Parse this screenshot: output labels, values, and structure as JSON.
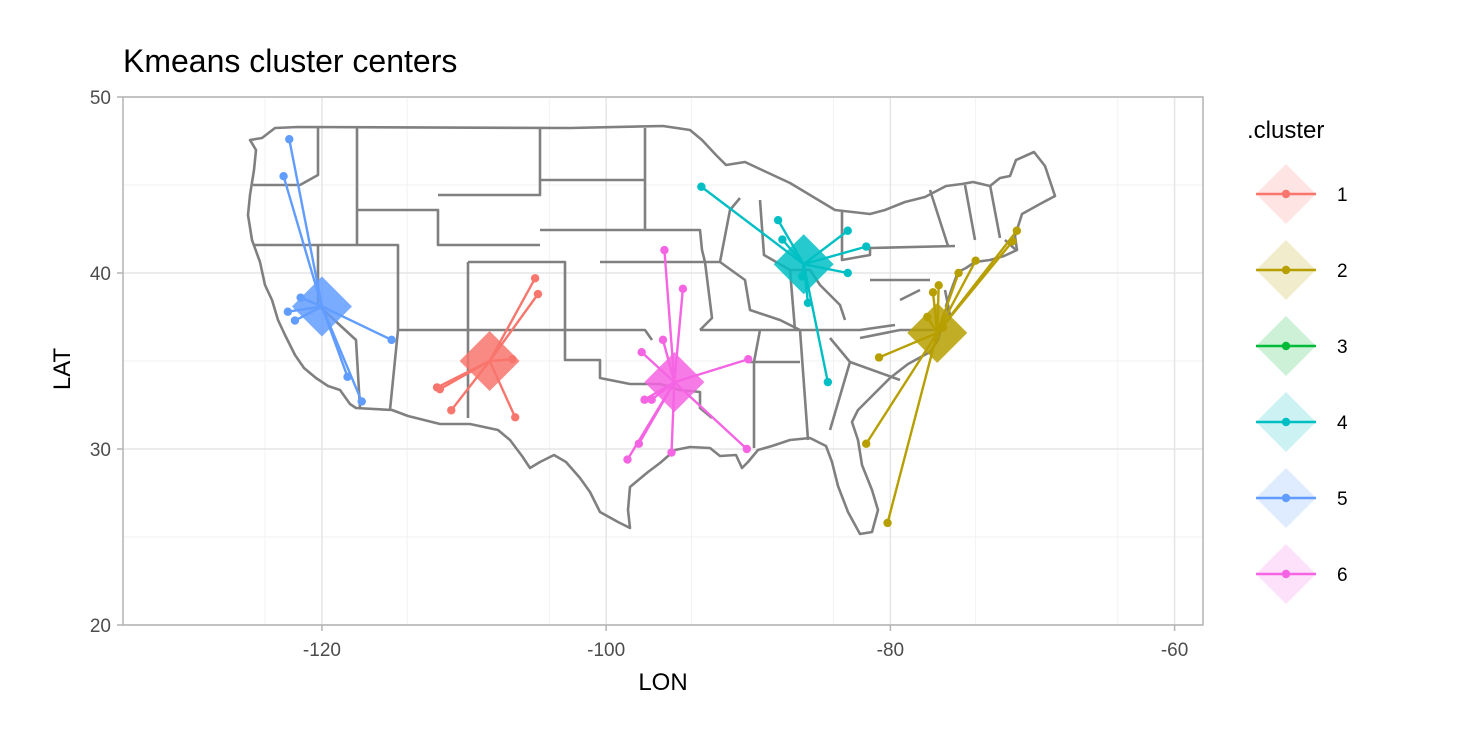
{
  "chart_data": {
    "type": "scatter",
    "title": "Kmeans cluster centers",
    "xlabel": "LON",
    "ylabel": "LAT",
    "xlim": [
      -134,
      -58
    ],
    "ylim": [
      20,
      50
    ],
    "x_ticks": [
      -120,
      -100,
      -80,
      -60
    ],
    "y_ticks": [
      20,
      30,
      40,
      50
    ],
    "x_tick_labels": [
      "-120",
      "-100",
      "-80",
      "-60"
    ],
    "y_tick_labels": [
      "20",
      "30",
      "40",
      "50"
    ],
    "grid": true,
    "legend": {
      "title": ".cluster",
      "position": "right"
    },
    "basemap": "US state boundaries",
    "series": [
      {
        "name": "1",
        "color": "#F8766D",
        "center": [
          -108.2,
          35.0
        ],
        "points": [
          [
            -105.0,
            39.7
          ],
          [
            -104.8,
            38.8
          ],
          [
            -106.6,
            35.1
          ],
          [
            -106.4,
            31.8
          ],
          [
            -110.9,
            32.2
          ],
          [
            -111.9,
            33.5
          ],
          [
            -111.7,
            33.4
          ]
        ]
      },
      {
        "name": "2",
        "color": "#B79F00",
        "center": [
          -76.7,
          36.6
        ],
        "points": [
          [
            -80.2,
            25.8
          ],
          [
            -81.7,
            30.3
          ],
          [
            -80.8,
            35.2
          ],
          [
            -76.6,
            39.3
          ],
          [
            -77.0,
            38.9
          ],
          [
            -75.2,
            40.0
          ],
          [
            -74.0,
            40.7
          ],
          [
            -71.1,
            42.4
          ],
          [
            -71.4,
            41.8
          ],
          [
            -77.4,
            37.5
          ],
          [
            -76.3,
            36.9
          ]
        ]
      },
      {
        "name": "3",
        "color": "#00BA38",
        "center": null,
        "points": []
      },
      {
        "name": "4",
        "color": "#00BFC4",
        "center": [
          -86.1,
          40.5
        ],
        "points": [
          [
            -93.3,
            44.9
          ],
          [
            -87.6,
            41.9
          ],
          [
            -87.9,
            43.0
          ],
          [
            -83.0,
            42.4
          ],
          [
            -81.7,
            41.5
          ],
          [
            -83.0,
            40.0
          ],
          [
            -86.2,
            39.8
          ],
          [
            -85.8,
            38.3
          ],
          [
            -84.4,
            33.8
          ]
        ]
      },
      {
        "name": "5",
        "color": "#619CFF",
        "center": [
          -120.0,
          38.1
        ],
        "points": [
          [
            -122.3,
            47.6
          ],
          [
            -122.7,
            45.5
          ],
          [
            -122.4,
            37.8
          ],
          [
            -121.9,
            37.3
          ],
          [
            -121.5,
            38.6
          ],
          [
            -118.2,
            34.1
          ],
          [
            -117.2,
            32.7
          ],
          [
            -115.1,
            36.2
          ]
        ]
      },
      {
        "name": "6",
        "color": "#F564E3",
        "center": [
          -95.2,
          33.8
        ],
        "points": [
          [
            -94.6,
            39.1
          ],
          [
            -95.9,
            41.3
          ],
          [
            -97.5,
            35.5
          ],
          [
            -96.0,
            36.2
          ],
          [
            -96.8,
            32.8
          ],
          [
            -97.3,
            32.8
          ],
          [
            -95.4,
            29.8
          ],
          [
            -98.5,
            29.4
          ],
          [
            -97.7,
            30.3
          ],
          [
            -90.1,
            30.0
          ],
          [
            -90.0,
            35.1
          ]
        ]
      }
    ]
  }
}
